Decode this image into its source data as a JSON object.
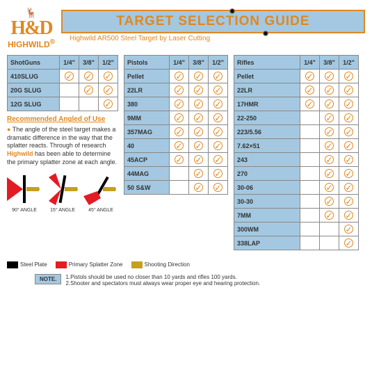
{
  "logo": {
    "hd": "H&D",
    "brand": "HIGHWILD",
    "reg": "®"
  },
  "title": "TARGET SELECTION GUIDE",
  "subtitle": "Highwild AR500 Steel Target by Laser Cutting",
  "thicknesses": [
    "1/4\"",
    "3/8\"",
    "1/2\""
  ],
  "shotguns": {
    "label": "ShotGuns",
    "rows": [
      {
        "name": "410SLUG",
        "ok": [
          true,
          true,
          true
        ]
      },
      {
        "name": "20G SLUG",
        "ok": [
          false,
          true,
          true
        ]
      },
      {
        "name": "12G SLUG",
        "ok": [
          false,
          false,
          true
        ]
      }
    ]
  },
  "pistols": {
    "label": "Pistols",
    "rows": [
      {
        "name": "Pellet",
        "ok": [
          true,
          true,
          true
        ]
      },
      {
        "name": "22LR",
        "ok": [
          true,
          true,
          true
        ]
      },
      {
        "name": "380",
        "ok": [
          true,
          true,
          true
        ]
      },
      {
        "name": "9MM",
        "ok": [
          true,
          true,
          true
        ]
      },
      {
        "name": "357MAG",
        "ok": [
          true,
          true,
          true
        ]
      },
      {
        "name": "40",
        "ok": [
          true,
          true,
          true
        ]
      },
      {
        "name": "45ACP",
        "ok": [
          true,
          true,
          true
        ]
      },
      {
        "name": "44MAG",
        "ok": [
          false,
          true,
          true
        ]
      },
      {
        "name": "50 S&W",
        "ok": [
          false,
          true,
          true
        ]
      }
    ]
  },
  "rifles": {
    "label": "Rifles",
    "rows": [
      {
        "name": "Pellet",
        "ok": [
          true,
          true,
          true
        ]
      },
      {
        "name": "22LR",
        "ok": [
          true,
          true,
          true
        ]
      },
      {
        "name": "17HMR",
        "ok": [
          true,
          true,
          true
        ]
      },
      {
        "name": "22-250",
        "ok": [
          false,
          true,
          true
        ]
      },
      {
        "name": "223/5.56",
        "ok": [
          false,
          true,
          true
        ]
      },
      {
        "name": "7.62×51",
        "ok": [
          false,
          true,
          true
        ]
      },
      {
        "name": "243",
        "ok": [
          false,
          true,
          true
        ]
      },
      {
        "name": "270",
        "ok": [
          false,
          true,
          true
        ]
      },
      {
        "name": "30-06",
        "ok": [
          false,
          true,
          true
        ]
      },
      {
        "name": "30-30",
        "ok": [
          false,
          true,
          true
        ]
      },
      {
        "name": "7MM",
        "ok": [
          false,
          true,
          true
        ]
      },
      {
        "name": "300WM",
        "ok": [
          false,
          false,
          true
        ]
      },
      {
        "name": "338LAP",
        "ok": [
          false,
          false,
          true
        ]
      }
    ]
  },
  "rec": {
    "title": "Recommended Angled of Use",
    "bullet": "●",
    "text1": "The angle of the steel target makes a dramatic difference in the way that the splatter reacts. Through of research ",
    "brand": "Highwild",
    "text2": " has been able to determine the primary splatter zone at each angle."
  },
  "angles": [
    "90° ANGLE",
    "15° ANGLE",
    "45° ANGLE"
  ],
  "legend": {
    "plate": {
      "color": "#000000",
      "label": "Steel Plate"
    },
    "splatter": {
      "color": "#e31b23",
      "label": "Primary Splatter Zone"
    },
    "direction": {
      "color": "#c4a020",
      "label": "Shooting Direction"
    }
  },
  "note": {
    "label": "NOTE.",
    "l1": "1.Pistols should be used no closer than 10 yards and rifles 100 yards.",
    "l2": "2.Shooter and spectators must always wear proper eye and hearing protection."
  },
  "colors": {
    "accent": "#e08820",
    "header_bg": "#a4c8e1",
    "border": "#888888"
  }
}
